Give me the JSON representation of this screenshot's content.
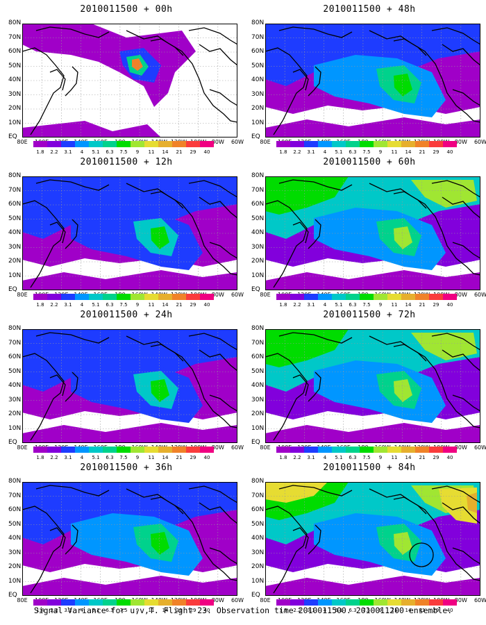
{
  "panels": [
    {
      "title": "2010011500 + 00h",
      "level": 0
    },
    {
      "title": "2010011500 + 48h",
      "level": 2
    },
    {
      "title": "2010011500 + 12h",
      "level": 1
    },
    {
      "title": "2010011500 + 60h",
      "level": 3
    },
    {
      "title": "2010011500 + 24h",
      "level": 1
    },
    {
      "title": "2010011500 + 72h",
      "level": 3
    },
    {
      "title": "2010011500 + 36h",
      "level": 2
    },
    {
      "title": "2010011500 + 84h",
      "level": 4
    }
  ],
  "lat_labels": [
    "80N",
    "70N",
    "60N",
    "50N",
    "40N",
    "30N",
    "20N",
    "10N",
    "EQ"
  ],
  "lon_labels": [
    "80E",
    "100E",
    "120E",
    "140E",
    "160E",
    "180",
    "160W",
    "140W",
    "120W",
    "100W",
    "80W",
    "60W"
  ],
  "colorbar_values": [
    "1.8",
    "2.2",
    "3.1",
    "4",
    "5.1",
    "6.3",
    "7.5",
    "9",
    "11",
    "14",
    "21",
    "29",
    "40"
  ],
  "colorbar_colors": [
    "#a000c8",
    "#8200dc",
    "#1e3cff",
    "#0096ff",
    "#00c8c8",
    "#00d28c",
    "#00dc00",
    "#a0e632",
    "#e6dc32",
    "#e6af2d",
    "#f08228",
    "#fa3c3c",
    "#f00082"
  ],
  "caption": "Signal Variance for u,v,T. Flight 23. Observation time 2010011500. 2010011200 ensemble."
}
